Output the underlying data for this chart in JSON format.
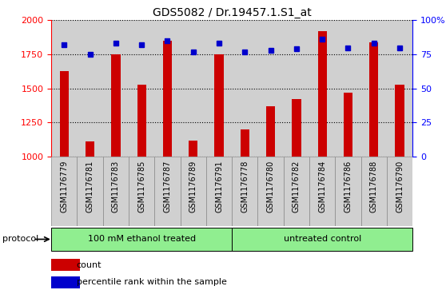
{
  "title": "GDS5082 / Dr.19457.1.S1_at",
  "samples": [
    "GSM1176779",
    "GSM1176781",
    "GSM1176783",
    "GSM1176785",
    "GSM1176787",
    "GSM1176789",
    "GSM1176791",
    "GSM1176778",
    "GSM1176780",
    "GSM1176782",
    "GSM1176784",
    "GSM1176786",
    "GSM1176788",
    "GSM1176790"
  ],
  "counts": [
    1630,
    1110,
    1750,
    1530,
    1850,
    1120,
    1750,
    1200,
    1370,
    1420,
    1920,
    1470,
    1840,
    1530
  ],
  "percentiles": [
    82,
    75,
    83,
    82,
    85,
    77,
    83,
    77,
    78,
    79,
    86,
    80,
    83,
    80
  ],
  "groups": [
    "100 mM ethanol treated",
    "100 mM ethanol treated",
    "100 mM ethanol treated",
    "100 mM ethanol treated",
    "100 mM ethanol treated",
    "100 mM ethanol treated",
    "100 mM ethanol treated",
    "untreated control",
    "untreated control",
    "untreated control",
    "untreated control",
    "untreated control",
    "untreated control",
    "untreated control"
  ],
  "bar_color": "#CC0000",
  "dot_color": "#0000CC",
  "col_bg_color": "#d0d0d0",
  "ylim_left": [
    1000,
    2000
  ],
  "ylim_right": [
    0,
    100
  ],
  "yticks_left": [
    1000,
    1250,
    1500,
    1750,
    2000
  ],
  "yticks_right": [
    0,
    25,
    50,
    75,
    100
  ],
  "ytick_labels_right": [
    "0",
    "25",
    "50",
    "75",
    "100%"
  ],
  "group_fill": "#90EE90",
  "group_edge": "#000000",
  "protocol_label": "protocol",
  "legend_count": "count",
  "legend_percentile": "percentile rank within the sample"
}
